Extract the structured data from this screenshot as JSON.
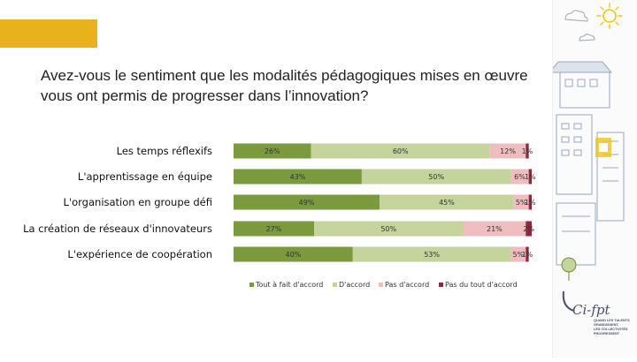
{
  "slide": {
    "title_line1": "Avez-vous le sentiment que les modalités pédagogiques mises en œuvre",
    "title_line2": "vous ont permis de progresser dans l’innovation?"
  },
  "chart_data": {
    "type": "bar",
    "orientation": "horizontal",
    "stacked": true,
    "title": "Avez-vous le sentiment que les modalités pédagogiques mises en œuvre vous ont permis de progresser dans l’innovation?",
    "categories": [
      "Les temps réflexifs",
      "L'apprentissage en équipe",
      "L'organisation en groupe défi",
      "La création de réseaux d'innovateurs",
      "L'expérience de coopération"
    ],
    "series": [
      {
        "name": "Tout à fait d'accord",
        "color": "#7b9a3d",
        "values": [
          26,
          43,
          49,
          27,
          40
        ]
      },
      {
        "name": "D'accord",
        "color": "#c4d49c",
        "values": [
          60,
          50,
          45,
          50,
          53
        ]
      },
      {
        "name": "Pas d'accord",
        "color": "#efbcc0",
        "values": [
          12,
          6,
          5,
          21,
          5
        ]
      },
      {
        "name": "Pas du tout d'accord",
        "color": "#8b2a3e",
        "values": [
          1,
          1,
          1,
          2,
          1
        ]
      }
    ],
    "xlim": [
      0,
      100
    ],
    "legend": "bottom"
  },
  "branding": {
    "logo_text": "Ci-fpt",
    "tagline": [
      "QUAND LES TALENTS",
      "GRANDISSENT,",
      "LES COLLECTIVITÉS",
      "PROGRESSENT"
    ]
  }
}
